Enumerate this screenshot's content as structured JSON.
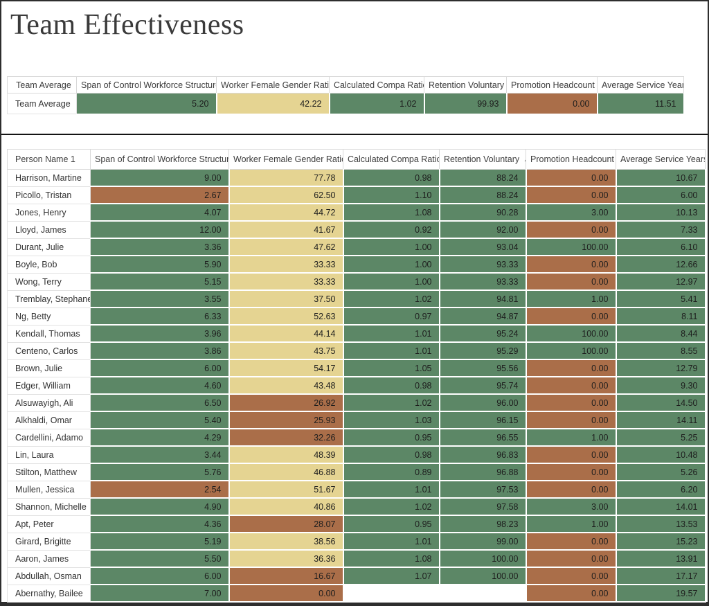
{
  "page": {
    "title": "Team Effectiveness"
  },
  "colors": {
    "green": "#5c8766",
    "yellow": "#e5d492",
    "brown": "#aa6e49",
    "white": "#ffffff"
  },
  "summary_table": {
    "columns": [
      "Team Average",
      "Span of Control Workforce Structure",
      "Worker Female Gender Ratio",
      "Calculated Compa Ratio",
      "Retention Voluntary",
      "Promotion Headcount",
      "Average Service Years"
    ],
    "row": {
      "label": "Team Average",
      "values": [
        "5.20",
        "42.22",
        "1.02",
        "99.93",
        "0.00",
        "11.51"
      ],
      "cell_colors": [
        "green",
        "yellow",
        "green",
        "green",
        "brown",
        "green"
      ]
    }
  },
  "detail_table": {
    "columns": [
      "Person Name 1",
      "Span of Control Workforce Structure",
      "Worker Female Gender Ratio",
      "Calculated Compa Ratio",
      "Retention Voluntary",
      "Promotion Headcount",
      "Average Service Years"
    ],
    "sort": {
      "column": "Retention Voluntary",
      "column_index": 4,
      "direction": "ascending",
      "icon": "▲"
    },
    "rows": [
      {
        "name": "Harrison, Martine",
        "values": [
          "9.00",
          "77.78",
          "0.98",
          "88.24",
          "0.00",
          "10.67"
        ],
        "cell_colors": [
          "green",
          "yellow",
          "green",
          "green",
          "brown",
          "green"
        ]
      },
      {
        "name": "Picollo, Tristan",
        "values": [
          "2.67",
          "62.50",
          "1.10",
          "88.24",
          "0.00",
          "6.00"
        ],
        "cell_colors": [
          "brown",
          "yellow",
          "green",
          "green",
          "brown",
          "green"
        ]
      },
      {
        "name": "Jones, Henry",
        "values": [
          "4.07",
          "44.72",
          "1.08",
          "90.28",
          "3.00",
          "10.13"
        ],
        "cell_colors": [
          "green",
          "yellow",
          "green",
          "green",
          "green",
          "green"
        ]
      },
      {
        "name": "Lloyd, James",
        "values": [
          "12.00",
          "41.67",
          "0.92",
          "92.00",
          "0.00",
          "7.33"
        ],
        "cell_colors": [
          "green",
          "yellow",
          "green",
          "green",
          "brown",
          "green"
        ]
      },
      {
        "name": "Durant, Julie",
        "values": [
          "3.36",
          "47.62",
          "1.00",
          "93.04",
          "100.00",
          "6.10"
        ],
        "cell_colors": [
          "green",
          "yellow",
          "green",
          "green",
          "green",
          "green"
        ]
      },
      {
        "name": "Boyle, Bob",
        "values": [
          "5.90",
          "33.33",
          "1.00",
          "93.33",
          "0.00",
          "12.66"
        ],
        "cell_colors": [
          "green",
          "yellow",
          "green",
          "green",
          "brown",
          "green"
        ]
      },
      {
        "name": "Wong, Terry",
        "values": [
          "5.15",
          "33.33",
          "1.00",
          "93.33",
          "0.00",
          "12.97"
        ],
        "cell_colors": [
          "green",
          "yellow",
          "green",
          "green",
          "brown",
          "green"
        ]
      },
      {
        "name": "Tremblay, Stephane",
        "values": [
          "3.55",
          "37.50",
          "1.02",
          "94.81",
          "1.00",
          "5.41"
        ],
        "cell_colors": [
          "green",
          "yellow",
          "green",
          "green",
          "green",
          "green"
        ]
      },
      {
        "name": "Ng, Betty",
        "values": [
          "6.33",
          "52.63",
          "0.97",
          "94.87",
          "0.00",
          "8.11"
        ],
        "cell_colors": [
          "green",
          "yellow",
          "green",
          "green",
          "brown",
          "green"
        ]
      },
      {
        "name": "Kendall, Thomas",
        "values": [
          "3.96",
          "44.14",
          "1.01",
          "95.24",
          "100.00",
          "8.44"
        ],
        "cell_colors": [
          "green",
          "yellow",
          "green",
          "green",
          "green",
          "green"
        ]
      },
      {
        "name": "Centeno, Carlos",
        "values": [
          "3.86",
          "43.75",
          "1.01",
          "95.29",
          "100.00",
          "8.55"
        ],
        "cell_colors": [
          "green",
          "yellow",
          "green",
          "green",
          "green",
          "green"
        ]
      },
      {
        "name": "Brown, Julie",
        "values": [
          "6.00",
          "54.17",
          "1.05",
          "95.56",
          "0.00",
          "12.79"
        ],
        "cell_colors": [
          "green",
          "yellow",
          "green",
          "green",
          "brown",
          "green"
        ]
      },
      {
        "name": "Edger, William",
        "values": [
          "4.60",
          "43.48",
          "0.98",
          "95.74",
          "0.00",
          "9.30"
        ],
        "cell_colors": [
          "green",
          "yellow",
          "green",
          "green",
          "brown",
          "green"
        ]
      },
      {
        "name": "Alsuwayigh, Ali",
        "values": [
          "6.50",
          "26.92",
          "1.02",
          "96.00",
          "0.00",
          "14.50"
        ],
        "cell_colors": [
          "green",
          "brown",
          "green",
          "green",
          "brown",
          "green"
        ]
      },
      {
        "name": "Alkhaldi, Omar",
        "values": [
          "5.40",
          "25.93",
          "1.03",
          "96.15",
          "0.00",
          "14.11"
        ],
        "cell_colors": [
          "green",
          "brown",
          "green",
          "green",
          "brown",
          "green"
        ]
      },
      {
        "name": "Cardellini, Adamo",
        "values": [
          "4.29",
          "32.26",
          "0.95",
          "96.55",
          "1.00",
          "5.25"
        ],
        "cell_colors": [
          "green",
          "brown",
          "green",
          "green",
          "green",
          "green"
        ]
      },
      {
        "name": "Lin, Laura",
        "values": [
          "3.44",
          "48.39",
          "0.98",
          "96.83",
          "0.00",
          "10.48"
        ],
        "cell_colors": [
          "green",
          "yellow",
          "green",
          "green",
          "brown",
          "green"
        ]
      },
      {
        "name": "Stilton, Matthew",
        "values": [
          "5.76",
          "46.88",
          "0.89",
          "96.88",
          "0.00",
          "5.26"
        ],
        "cell_colors": [
          "green",
          "yellow",
          "green",
          "green",
          "brown",
          "green"
        ]
      },
      {
        "name": "Mullen, Jessica",
        "values": [
          "2.54",
          "51.67",
          "1.01",
          "97.53",
          "0.00",
          "6.20"
        ],
        "cell_colors": [
          "brown",
          "yellow",
          "green",
          "green",
          "brown",
          "green"
        ]
      },
      {
        "name": "Shannon, Michelle",
        "values": [
          "4.90",
          "40.86",
          "1.02",
          "97.58",
          "3.00",
          "14.01"
        ],
        "cell_colors": [
          "green",
          "yellow",
          "green",
          "green",
          "green",
          "green"
        ]
      },
      {
        "name": "Apt, Peter",
        "values": [
          "4.36",
          "28.07",
          "0.95",
          "98.23",
          "1.00",
          "13.53"
        ],
        "cell_colors": [
          "green",
          "brown",
          "green",
          "green",
          "green",
          "green"
        ]
      },
      {
        "name": "Girard, Brigitte",
        "values": [
          "5.19",
          "38.56",
          "1.01",
          "99.00",
          "0.00",
          "15.23"
        ],
        "cell_colors": [
          "green",
          "yellow",
          "green",
          "green",
          "brown",
          "green"
        ]
      },
      {
        "name": "Aaron, James",
        "values": [
          "5.50",
          "36.36",
          "1.08",
          "100.00",
          "0.00",
          "13.91"
        ],
        "cell_colors": [
          "green",
          "yellow",
          "green",
          "green",
          "brown",
          "green"
        ]
      },
      {
        "name": "Abdullah, Osman",
        "values": [
          "6.00",
          "16.67",
          "1.07",
          "100.00",
          "0.00",
          "17.17"
        ],
        "cell_colors": [
          "green",
          "brown",
          "green",
          "green",
          "brown",
          "green"
        ]
      },
      {
        "name": "Abernathy, Bailee",
        "values": [
          "7.00",
          "0.00",
          "",
          "",
          "0.00",
          "19.57"
        ],
        "cell_colors": [
          "green",
          "brown",
          "white",
          "white",
          "brown",
          "green"
        ]
      }
    ]
  }
}
